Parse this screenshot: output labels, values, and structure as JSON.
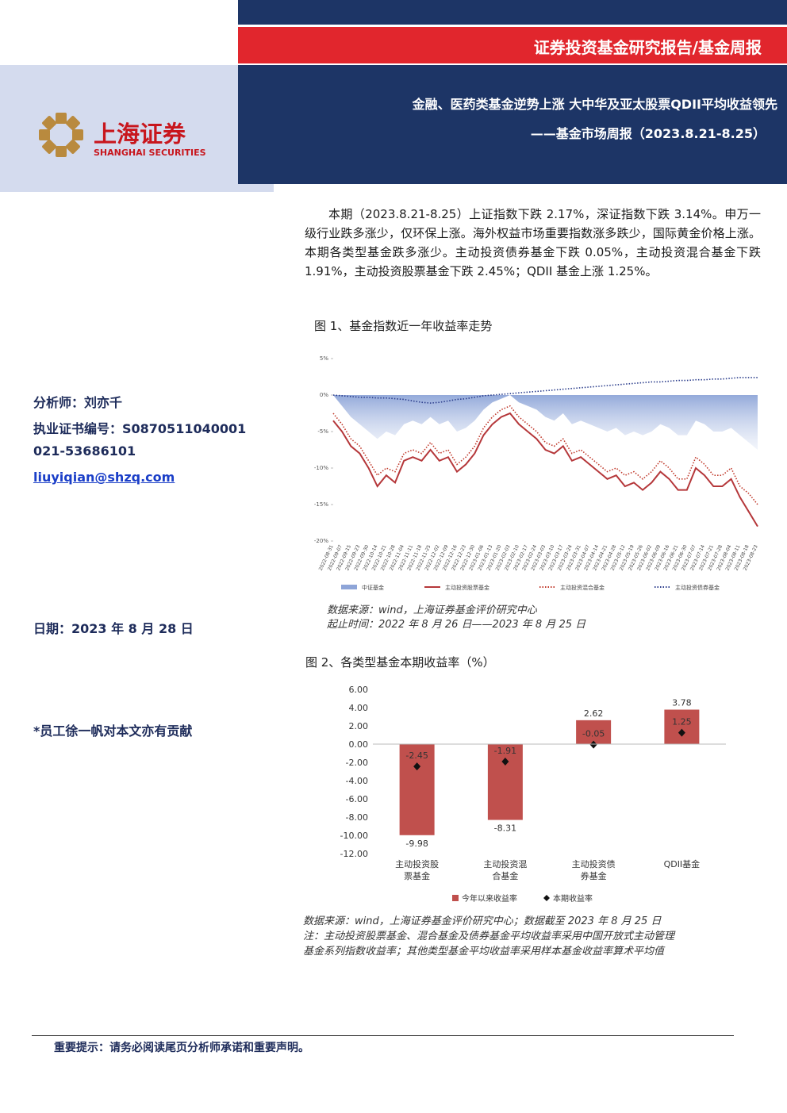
{
  "header": {
    "report_type": "证券投资基金研究报告/基金周报",
    "title": "金融、医药类基金逆势上涨 大中华及亚太股票QDII平均收益领先",
    "subtitle": "——基金市场周报（2023.8.21-8.25）",
    "logo_cn": "上海证券",
    "logo_en": "SHANGHAI SECURITIES"
  },
  "sidebar": {
    "analyst": "分析师：刘亦千",
    "certificate": "执业证书编号：S0870511040001",
    "phone": "021-53686101",
    "email": "liuyiqian@shzq.com",
    "date": "日期：2023 年 8 月 28 日",
    "contributor": "*员工徐一帆对本文亦有贡献"
  },
  "summary": "本期（2023.8.21-8.25）上证指数下跌 2.17%，深证指数下跌 3.14%。申万一级行业跌多涨少，仅环保上涨。海外权益市场重要指数涨多跌少，国际黄金价格上涨。本期各类型基金跌多涨少。主动投资债券基金下跌 0.05%，主动投资混合基金下跌 1.91%，主动投资股票基金下跌 2.45%；QDII 基金上涨 1.25%。",
  "chart_data": [
    {
      "type": "line",
      "title": "图 1、基金指数近一年收益率走势",
      "notes": [
        "数据来源：wind，上海证券基金评价研究中心",
        "起止时间：2022 年 8 月 26 日——2023 年 8 月 25 日"
      ],
      "categories": [
        "2022-08-31",
        "2022-09-07",
        "2022-09-15",
        "2022-09-23",
        "2022-09-30",
        "2022-10-14",
        "2022-10-21",
        "2022-10-28",
        "2022-11-04",
        "2022-11-11",
        "2022-11-18",
        "2022-11-25",
        "2022-12-02",
        "2022-12-09",
        "2022-12-16",
        "2022-12-23",
        "2022-12-30",
        "2023-01-06",
        "2023-01-13",
        "2023-01-20",
        "2023-02-03",
        "2023-02-10",
        "2023-02-17",
        "2023-02-24",
        "2023-03-03",
        "2023-03-10",
        "2023-03-17",
        "2023-03-24",
        "2023-03-31",
        "2023-04-07",
        "2023-04-14",
        "2023-04-21",
        "2023-04-28",
        "2023-05-12",
        "2023-05-19",
        "2023-05-26",
        "2023-06-02",
        "2023-06-09",
        "2023-06-16",
        "2023-06-21",
        "2023-06-30",
        "2023-07-07",
        "2023-07-14",
        "2023-07-21",
        "2023-07-28",
        "2023-08-04",
        "2023-08-11",
        "2023-08-18",
        "2023-08-23"
      ],
      "series": [
        {
          "name": "中证基金",
          "color": "#8ea5d8",
          "style": "area",
          "values": [
            0,
            -1.5,
            -3,
            -4,
            -5,
            -6,
            -5,
            -5.5,
            -4,
            -3.5,
            -4,
            -3,
            -4,
            -3.5,
            -5,
            -4.5,
            -3.5,
            -2,
            -1,
            -0.5,
            0,
            -1,
            -1.5,
            -2,
            -3,
            -3.5,
            -2.5,
            -4,
            -3.5,
            -4,
            -4.5,
            -5,
            -4.5,
            -5.5,
            -5,
            -5.5,
            -5,
            -4,
            -4.5,
            -5.5,
            -5.5,
            -3.5,
            -4,
            -5,
            -5,
            -4.5,
            -5.5,
            -6.5,
            -7.5
          ]
        },
        {
          "name": "主动投资股票基金",
          "color": "#b5373a",
          "style": "solid",
          "values": [
            -3.5,
            -5,
            -7,
            -8,
            -10,
            -12.5,
            -11,
            -12,
            -9,
            -8.5,
            -9,
            -7.5,
            -9,
            -8.5,
            -10.5,
            -9.5,
            -8,
            -5.5,
            -4,
            -3,
            -2.5,
            -4,
            -5,
            -6,
            -7.5,
            -8,
            -7,
            -9,
            -8.5,
            -9.5,
            -10.5,
            -11.5,
            -11,
            -12.5,
            -12,
            -13,
            -12,
            -10.5,
            -11.5,
            -13,
            -13,
            -10,
            -11,
            -12.5,
            -12.5,
            -11.5,
            -14,
            -16,
            -18
          ]
        },
        {
          "name": "主动投资混合基金",
          "color": "#c0392b",
          "style": "dotted",
          "values": [
            -2.5,
            -4,
            -6,
            -7,
            -9,
            -11,
            -10,
            -10.5,
            -8,
            -7.5,
            -8,
            -6.5,
            -8,
            -7.5,
            -9.5,
            -8.5,
            -7,
            -4.5,
            -3,
            -2,
            -1.5,
            -3,
            -4,
            -5,
            -6.5,
            -7,
            -6,
            -8,
            -7.5,
            -8.5,
            -9.5,
            -10.5,
            -10,
            -11,
            -10.5,
            -11.5,
            -10.5,
            -9,
            -10,
            -11.5,
            -11.5,
            -8.5,
            -9.5,
            -11,
            -11,
            -10,
            -12.5,
            -13.5,
            -15
          ]
        },
        {
          "name": "主动投资债券基金",
          "color": "#2c3e8c",
          "style": "dotted",
          "values": [
            0,
            -0.1,
            -0.2,
            -0.3,
            -0.3,
            -0.4,
            -0.4,
            -0.5,
            -0.6,
            -0.8,
            -1,
            -1.1,
            -1,
            -0.8,
            -0.6,
            -0.5,
            -0.3,
            -0.1,
            0,
            0.1,
            0.2,
            0.3,
            0.4,
            0.5,
            0.6,
            0.7,
            0.8,
            0.9,
            1,
            1.1,
            1.2,
            1.3,
            1.4,
            1.5,
            1.6,
            1.7,
            1.8,
            1.8,
            1.9,
            2,
            2,
            2.1,
            2.1,
            2.2,
            2.2,
            2.3,
            2.4,
            2.4,
            2.4
          ]
        }
      ],
      "ylim": [
        -20,
        5
      ],
      "yticks": [
        {
          "value": -20,
          "label": "-20%"
        },
        {
          "value": -15,
          "label": "-15%"
        },
        {
          "value": -10,
          "label": "-10%"
        },
        {
          "value": -5,
          "label": "-5%"
        },
        {
          "value": 0,
          "label": "0%"
        },
        {
          "value": 5,
          "label": "5%"
        }
      ],
      "grid": false,
      "legend": "bottom"
    },
    {
      "type": "bar",
      "title": "图 2、各类型基金本期收益率（%）",
      "notes": [
        "数据来源：wind，上海证券基金评价研究中心；数据截至 2023 年 8 月 25 日",
        "注：主动投资股票基金、混合基金及债券基金平均收益率采用中国开放式主动管理",
        "基金系列指数收益率；其他类型基金平均收益率采用样本基金收益率算术平均值"
      ],
      "categories": [
        "主动投资股票基金",
        "主动投资混合基金",
        "主动投资债券基金",
        "QDII基金"
      ],
      "series": [
        {
          "name": "今年以来收益率",
          "color": "#c0504d",
          "marker": "bar",
          "values": [
            -9.98,
            -8.31,
            2.62,
            3.78
          ]
        },
        {
          "name": "本期收益率",
          "color": "#111111",
          "marker": "diamond",
          "values": [
            -2.45,
            -1.91,
            -0.05,
            1.25
          ]
        }
      ],
      "ylim": [
        -12,
        6
      ],
      "yticks": [
        {
          "value": -12,
          "label": "-12.00"
        },
        {
          "value": -10,
          "label": "-10.00"
        },
        {
          "value": -8,
          "label": "-8.00"
        },
        {
          "value": -6,
          "label": "-6.00"
        },
        {
          "value": -4,
          "label": "-4.00"
        },
        {
          "value": -2,
          "label": "-2.00"
        },
        {
          "value": 0,
          "label": "0.00"
        },
        {
          "value": 2,
          "label": "2.00"
        },
        {
          "value": 4,
          "label": "4.00"
        },
        {
          "value": 6,
          "label": "6.00"
        }
      ],
      "grid": false,
      "legend": "bottom"
    }
  ],
  "footer": "重要提示：请务必阅读尾页分析师承诺和重要声明。"
}
